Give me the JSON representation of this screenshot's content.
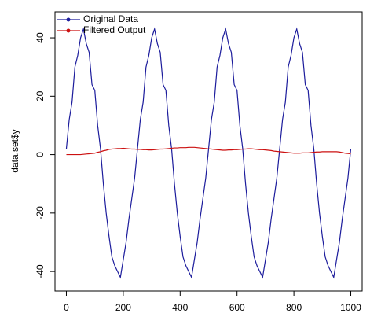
{
  "chart_data": {
    "type": "line",
    "ylabel": "data.set$y",
    "x": [
      0,
      10,
      20,
      30,
      40,
      50,
      60,
      70,
      80,
      90,
      100,
      110,
      120,
      130,
      140,
      150,
      160,
      170,
      180,
      190,
      200,
      210,
      220,
      230,
      240,
      250,
      260,
      270,
      280,
      290,
      300,
      310,
      320,
      330,
      340,
      350,
      360,
      370,
      380,
      390,
      400,
      410,
      420,
      430,
      440,
      450,
      460,
      470,
      480,
      490,
      500,
      510,
      520,
      530,
      540,
      550,
      560,
      570,
      580,
      590,
      600,
      610,
      620,
      630,
      640,
      650,
      660,
      670,
      680,
      690,
      700,
      710,
      720,
      730,
      740,
      750,
      760,
      770,
      780,
      790,
      800,
      810,
      820,
      830,
      840,
      850,
      860,
      870,
      880,
      890,
      900,
      910,
      920,
      930,
      940,
      950,
      960,
      970,
      980,
      990,
      1000
    ],
    "series": [
      {
        "name": "Original Data",
        "color": "#1c1c9c",
        "values": [
          2,
          12,
          18,
          30,
          34,
          40,
          43,
          38,
          35,
          24,
          22,
          10,
          2,
          -10,
          -20,
          -28,
          -35,
          -38,
          -40,
          -42,
          -36,
          -30,
          -22,
          -15,
          -8,
          2,
          12,
          18,
          30,
          34,
          40,
          43,
          38,
          35,
          24,
          22,
          10,
          2,
          -10,
          -20,
          -28,
          -35,
          -38,
          -40,
          -42,
          -36,
          -30,
          -22,
          -15,
          -8,
          2,
          12,
          18,
          30,
          34,
          40,
          43,
          38,
          35,
          24,
          22,
          10,
          2,
          -10,
          -20,
          -28,
          -35,
          -38,
          -40,
          -42,
          -36,
          -30,
          -22,
          -15,
          -8,
          2,
          12,
          18,
          30,
          34,
          40,
          43,
          38,
          35,
          24,
          22,
          10,
          2,
          -10,
          -20,
          -28,
          -35,
          -38,
          -40,
          -42,
          -36,
          -30,
          -22,
          -15,
          -8,
          2
        ]
      },
      {
        "name": "Filtered Output",
        "color": "#cc1111",
        "values": [
          0,
          0,
          0,
          0,
          0,
          0,
          0.1,
          0.2,
          0.3,
          0.4,
          0.5,
          0.8,
          1.0,
          1.3,
          1.5,
          1.8,
          1.9,
          2.0,
          2.1,
          2.1,
          2.2,
          2.1,
          2.0,
          1.9,
          1.9,
          1.8,
          1.8,
          1.7,
          1.7,
          1.6,
          1.6,
          1.7,
          1.8,
          1.9,
          1.9,
          2.0,
          2.1,
          2.2,
          2.3,
          2.3,
          2.4,
          2.4,
          2.4,
          2.5,
          2.5,
          2.5,
          2.4,
          2.3,
          2.2,
          2.1,
          2.0,
          1.9,
          1.8,
          1.7,
          1.6,
          1.5,
          1.5,
          1.6,
          1.6,
          1.7,
          1.7,
          1.8,
          1.9,
          1.9,
          2.0,
          2.0,
          1.9,
          1.8,
          1.7,
          1.7,
          1.6,
          1.5,
          1.4,
          1.2,
          1.1,
          1.0,
          0.9,
          0.8,
          0.7,
          0.6,
          0.5,
          0.5,
          0.5,
          0.6,
          0.6,
          0.6,
          0.7,
          0.8,
          0.9,
          0.9,
          1.0,
          1.0,
          1.0,
          1.0,
          1.0,
          1.0,
          0.9,
          0.7,
          0.5,
          0.4,
          0.3
        ]
      }
    ],
    "xlim": [
      -40,
      1040
    ],
    "xticks": [
      0,
      200,
      400,
      600,
      800,
      1000
    ],
    "ylim": [
      -46.7,
      48.9
    ],
    "yticks": [
      -40,
      -20,
      0,
      20,
      40
    ],
    "legend": "top-left"
  }
}
